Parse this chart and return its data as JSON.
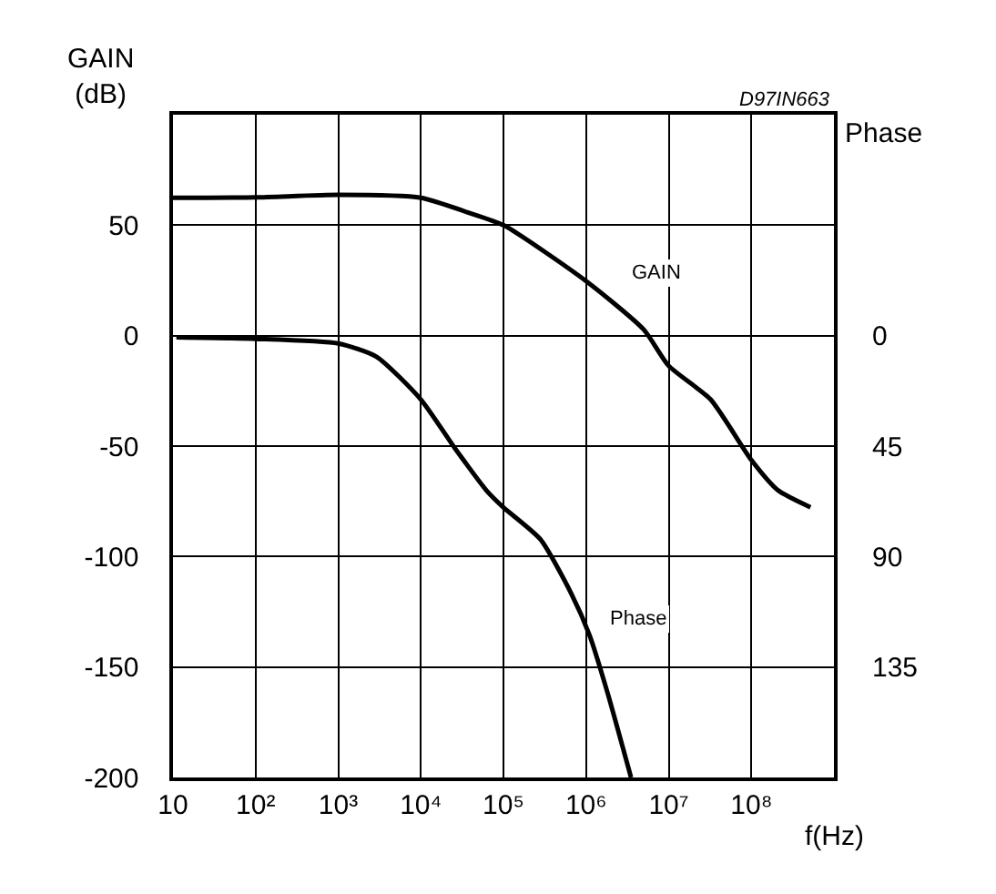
{
  "chart_data": {
    "type": "line",
    "xlabel": "f(Hz)",
    "ylabel": "GAIN\n(dB)",
    "y2label": "Phase",
    "log": "x",
    "xlim": [
      10,
      1000000000
    ],
    "xticks": [
      10,
      {
        "value": 100,
        "label": "10²"
      },
      {
        "value": 1000,
        "label": "10³"
      },
      {
        "value": 10000,
        "label": "10⁴"
      },
      {
        "value": 100000,
        "label": "10⁵"
      },
      {
        "value": 1000000,
        "label": "10⁶"
      },
      {
        "value": 10000000,
        "label": "10⁷"
      },
      {
        "value": 100000000,
        "label": "10⁸"
      },
      {
        "value": 1000000000,
        "label": null
      }
    ],
    "ylim": [
      -200,
      100
    ],
    "yticks": [
      -200,
      -150,
      -100,
      -50,
      0,
      50,
      {
        "value": 100,
        "label": null
      }
    ],
    "y2lim": [
      180,
      -90
    ],
    "y2ticks": [
      0,
      45,
      90,
      135
    ],
    "grid": true,
    "legend": false,
    "marker": "none",
    "line_style": "solid",
    "series": [
      {
        "color": "#000000",
        "x": [
          10,
          100,
          1000,
          10000,
          37000,
          100000,
          1000000,
          5000000,
          10000000,
          32000000,
          100000000,
          210000000,
          520000000
        ],
        "values": [
          62.4,
          62.6,
          63.7,
          62.4,
          55.8,
          50,
          24.7,
          2.7,
          -13.7,
          -28.8,
          -56.3,
          -70,
          -77.7
        ]
      },
      {
        "color": "#000000",
        "axis": "y2",
        "x": [
          11,
          100,
          1000,
          2900,
          10000,
          26000,
          62000,
          100000,
          280000,
          660000,
          1100000,
          1800000,
          3500000
        ],
        "values": [
          0.7,
          1.3,
          3.2,
          8.6,
          26,
          46,
          63,
          70,
          83,
          105,
          122,
          145,
          180
        ]
      }
    ],
    "annotations": [
      {
        "text": "GAIN",
        "x": 7000000,
        "y": 28
      },
      {
        "text": "Phase",
        "x": 4300000,
        "y": -128
      },
      "D97IN663"
    ]
  }
}
